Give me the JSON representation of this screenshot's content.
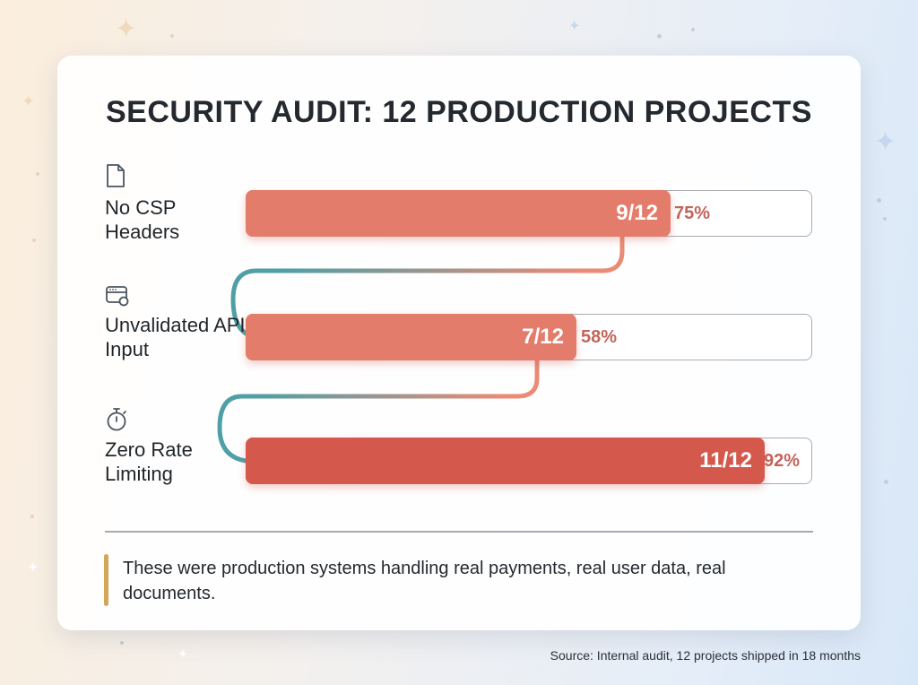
{
  "chart_data": {
    "type": "bar",
    "title": "SECURITY AUDIT: 12 PRODUCTION PROJECTS",
    "total": 12,
    "categories": [
      "No CSP Headers",
      "Unvalidated API Input",
      "Zero Rate Limiting"
    ],
    "rows": [
      {
        "label": "No CSP Headers",
        "icon": "document-icon",
        "count": 9,
        "value_label": "9/12",
        "percent_label": "75%",
        "color": "#e47c6b"
      },
      {
        "label": "Unvalidated API Input",
        "icon": "api-window-icon",
        "count": 7,
        "value_label": "7/12",
        "percent_label": "58%",
        "color": "#e47c6b"
      },
      {
        "label": "Zero Rate Limiting",
        "icon": "stopwatch-icon",
        "count": 11,
        "value_label": "11/12",
        "percent_label": "92%",
        "color": "#d5584d"
      }
    ],
    "connector_colors": [
      "#4f9fa6",
      "#ea8b76"
    ]
  },
  "quote": "These were production systems handling real payments, real user data, real documents.",
  "source": "Source: Internal audit, 12 projects shipped in 18 months"
}
